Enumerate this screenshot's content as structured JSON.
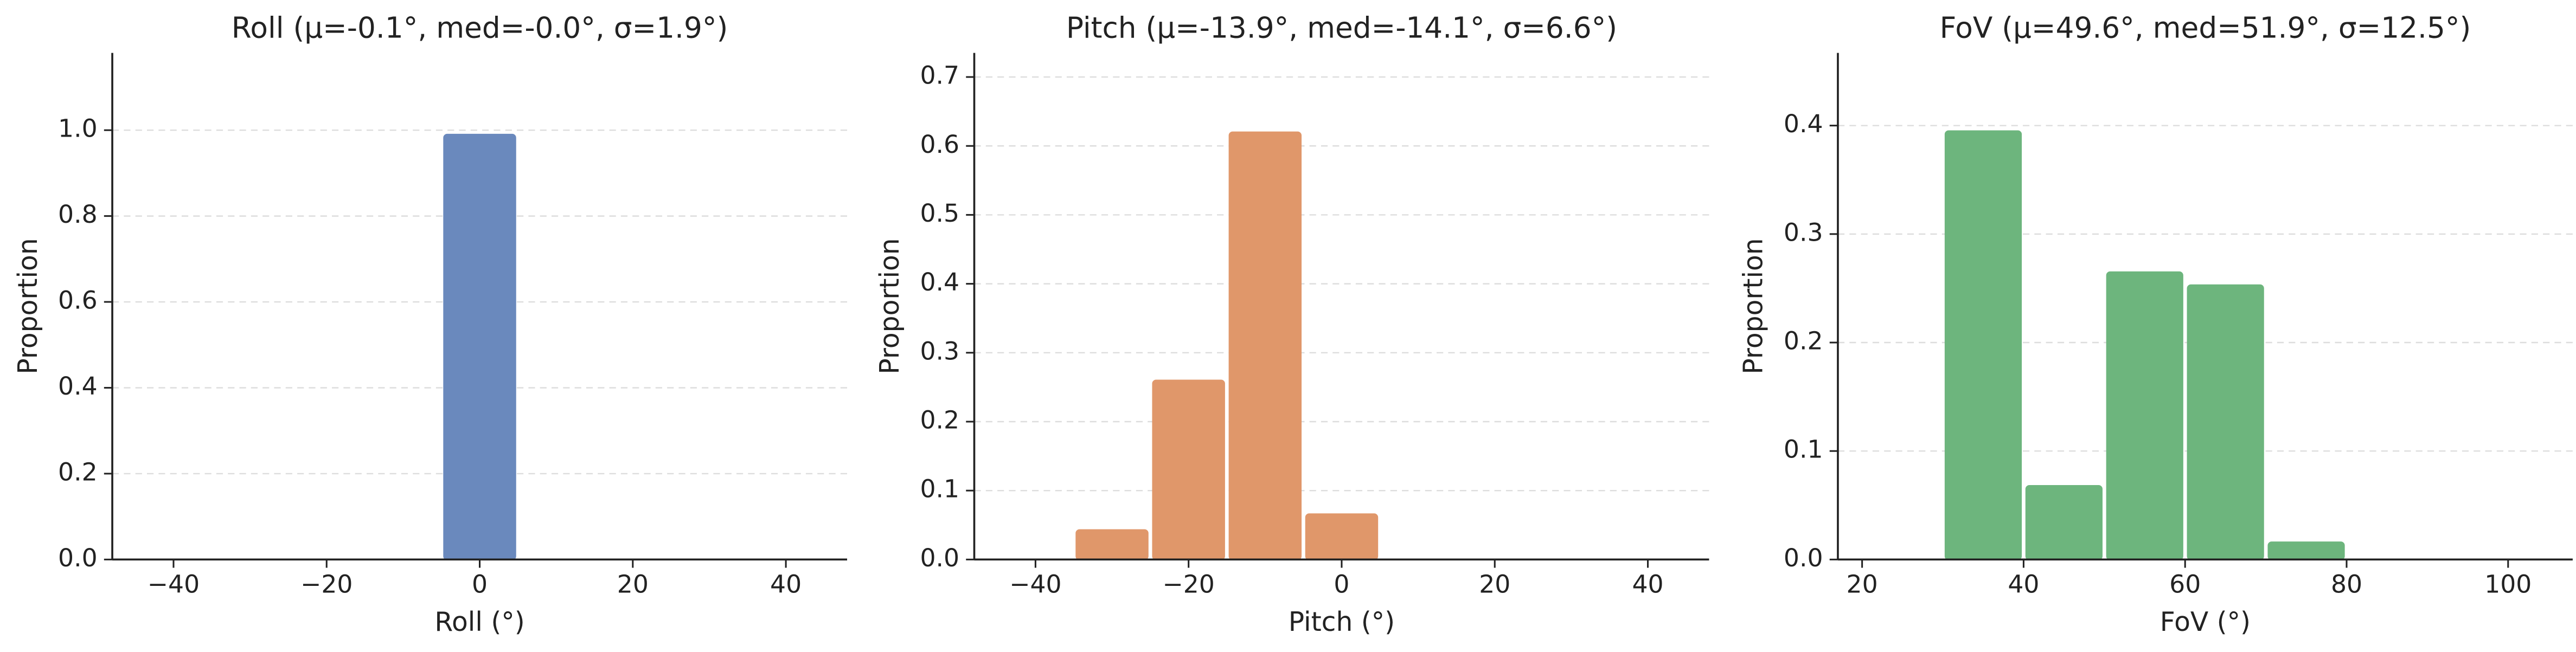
{
  "chart_data": [
    {
      "type": "histogram",
      "title": "Roll  (μ=-0.1°, med=-0.0°, σ=1.9°)",
      "xlabel": "Roll (°)",
      "ylabel": "Proportion",
      "color": "#6a89bd",
      "bins": [
        -45,
        -35,
        -25,
        -15,
        -5,
        5,
        15,
        25,
        35,
        45
      ],
      "values": [
        0,
        0,
        0,
        0,
        0.99,
        0,
        0,
        0,
        0
      ],
      "xlim": [
        -48,
        48
      ],
      "ylim": [
        0,
        1.18
      ],
      "grid": "y",
      "xticks": [
        {
          "value": -40,
          "label": "−40"
        },
        {
          "value": -20,
          "label": "−20"
        },
        0,
        20,
        40
      ],
      "yticks": [
        {
          "value": 0,
          "label": "0.0"
        },
        {
          "value": 0.2,
          "label": "0.2"
        },
        {
          "value": 0.4,
          "label": "0.4"
        },
        {
          "value": 0.6,
          "label": "0.6"
        },
        {
          "value": 0.8,
          "label": "0.8"
        },
        {
          "value": 1,
          "label": "1.0"
        }
      ]
    },
    {
      "type": "histogram",
      "title": "Pitch  (μ=-13.9°, med=-14.1°, σ=6.6°)",
      "xlabel": "Pitch (°)",
      "ylabel": "Proportion",
      "color": "#e0976a",
      "bins": [
        -45,
        -35,
        -25,
        -15,
        -5,
        5,
        15,
        25,
        35,
        45
      ],
      "values": [
        0,
        0.043,
        0.26,
        0.62,
        0.066,
        0,
        0,
        0,
        0
      ],
      "xlim": [
        -48,
        48
      ],
      "ylim": [
        0,
        0.735
      ],
      "grid": "y",
      "xticks": [
        {
          "value": -40,
          "label": "−40"
        },
        {
          "value": -20,
          "label": "−20"
        },
        0,
        20,
        40
      ],
      "yticks": [
        {
          "value": 0,
          "label": "0.0"
        },
        0.1,
        0.2,
        0.3,
        0.4,
        0.5,
        0.6,
        0.7
      ]
    },
    {
      "type": "histogram",
      "title": "FoV  (μ=49.6°, med=51.9°, σ=12.5°)",
      "xlabel": "FoV (°)",
      "ylabel": "Proportion",
      "color": "#6db57d",
      "bins": [
        20,
        30,
        40,
        50,
        60,
        70,
        80,
        90,
        100
      ],
      "values": [
        0,
        0.395,
        0.068,
        0.265,
        0.253,
        0.016,
        0,
        0
      ],
      "xlim": [
        17,
        108
      ],
      "ylim": [
        0,
        0.467
      ],
      "grid": "y",
      "xticks": [
        20,
        40,
        60,
        80,
        100
      ],
      "yticks": [
        {
          "value": 0,
          "label": "0.0"
        },
        0.1,
        0.2,
        0.3,
        0.4
      ]
    }
  ]
}
